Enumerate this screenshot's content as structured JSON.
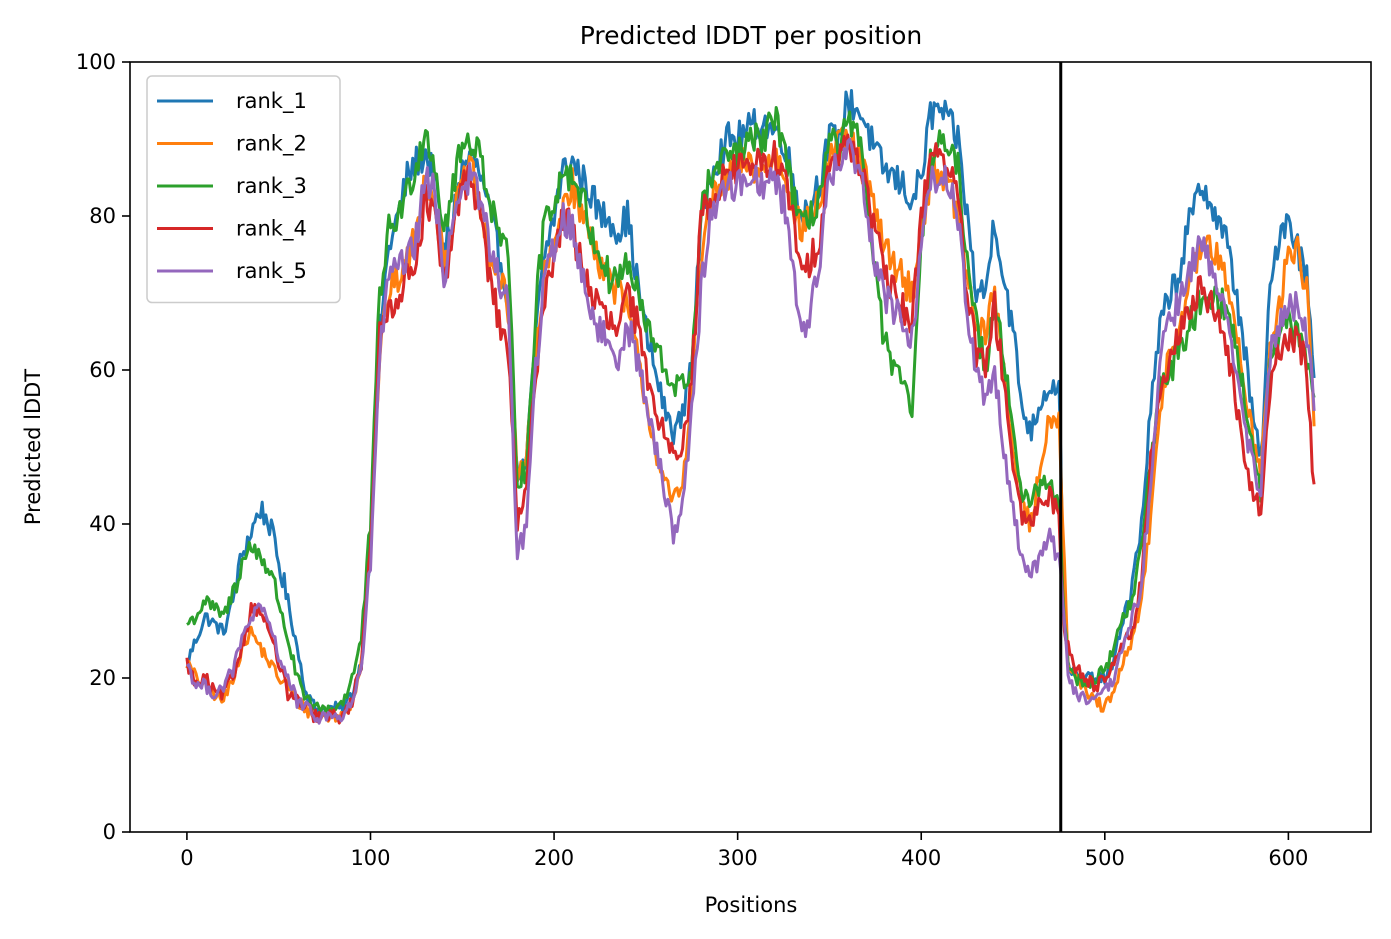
{
  "chart_data": {
    "type": "line",
    "title": "Predicted lDDT per position",
    "xlabel": "Positions",
    "ylabel": "Predicted lDDT",
    "xlim": [
      -31,
      645
    ],
    "ylim": [
      0,
      100
    ],
    "xticks": [
      0,
      100,
      200,
      300,
      400,
      500,
      600
    ],
    "yticks": [
      0,
      20,
      40,
      60,
      80,
      100
    ],
    "grid": false,
    "legend_position": "top-left",
    "vertical_line_x": 476,
    "vertical_line_color": "#000000",
    "series_keypoints_x": [
      0,
      5,
      10,
      15,
      20,
      25,
      30,
      35,
      40,
      45,
      50,
      55,
      60,
      65,
      70,
      75,
      80,
      85,
      90,
      95,
      100,
      105,
      110,
      115,
      120,
      125,
      130,
      135,
      140,
      145,
      150,
      155,
      160,
      165,
      170,
      175,
      180,
      185,
      190,
      195,
      200,
      205,
      210,
      215,
      220,
      225,
      230,
      235,
      240,
      245,
      250,
      255,
      260,
      265,
      270,
      275,
      280,
      285,
      290,
      295,
      300,
      305,
      310,
      315,
      320,
      325,
      330,
      335,
      340,
      345,
      350,
      355,
      360,
      365,
      370,
      375,
      380,
      385,
      390,
      395,
      400,
      405,
      410,
      415,
      420,
      425,
      430,
      435,
      440,
      445,
      450,
      455,
      460,
      465,
      470,
      475,
      478,
      480,
      485,
      490,
      495,
      500,
      505,
      510,
      515,
      520,
      525,
      530,
      535,
      540,
      545,
      550,
      555,
      560,
      565,
      570,
      575,
      580,
      585,
      590,
      595,
      600,
      605,
      610,
      614
    ],
    "series": [
      {
        "name": "rank_1",
        "color": "#1f77b4",
        "values": [
          22,
          25,
          28,
          27,
          26,
          30,
          36,
          39,
          42,
          40,
          35,
          30,
          24,
          18,
          16,
          16,
          16,
          16,
          18,
          22,
          38,
          65,
          76,
          80,
          85,
          87,
          88,
          85,
          75,
          80,
          86,
          88,
          85,
          80,
          75,
          70,
          46,
          48,
          65,
          75,
          80,
          86,
          87,
          85,
          83,
          80,
          80,
          78,
          80,
          72,
          65,
          60,
          55,
          52,
          54,
          62,
          78,
          86,
          88,
          90,
          90,
          91,
          92,
          92,
          91,
          90,
          85,
          80,
          82,
          85,
          90,
          90,
          95,
          94,
          92,
          88,
          86,
          85,
          84,
          82,
          85,
          93,
          94,
          92,
          90,
          80,
          70,
          70,
          80,
          72,
          65,
          55,
          52,
          56,
          58,
          58,
          28,
          22,
          20,
          20,
          20,
          20,
          22,
          28,
          32,
          40,
          55,
          65,
          70,
          72,
          78,
          82,
          84,
          80,
          78,
          72,
          65,
          55,
          48,
          70,
          78,
          80,
          76,
          72,
          60
        ]
      },
      {
        "name": "rank_2",
        "color": "#ff7f0e",
        "values": [
          22,
          20,
          19,
          18,
          17,
          20,
          24,
          26,
          24,
          22,
          20,
          19,
          17,
          16,
          15,
          15,
          15,
          15,
          17,
          22,
          38,
          62,
          70,
          72,
          74,
          78,
          85,
          82,
          74,
          80,
          84,
          86,
          80,
          75,
          72,
          68,
          47,
          49,
          62,
          72,
          76,
          82,
          84,
          80,
          78,
          74,
          72,
          70,
          68,
          62,
          56,
          50,
          45,
          43,
          45,
          58,
          74,
          82,
          83,
          85,
          86,
          87,
          86,
          86,
          88,
          86,
          82,
          78,
          80,
          82,
          88,
          89,
          90,
          88,
          85,
          80,
          76,
          74,
          72,
          70,
          78,
          85,
          86,
          84,
          80,
          72,
          65,
          65,
          70,
          60,
          50,
          42,
          40,
          48,
          54,
          54,
          35,
          22,
          20,
          18,
          17,
          16,
          18,
          22,
          25,
          30,
          40,
          55,
          62,
          65,
          70,
          74,
          77,
          75,
          72,
          68,
          60,
          52,
          47,
          62,
          68,
          75,
          76,
          70,
          53
        ]
      },
      {
        "name": "rank_3",
        "color": "#2ca02c",
        "values": [
          27,
          28,
          30,
          29,
          28,
          31,
          35,
          37,
          36,
          34,
          30,
          25,
          20,
          17,
          16,
          16,
          16,
          17,
          20,
          25,
          40,
          70,
          78,
          80,
          83,
          87,
          91,
          87,
          78,
          84,
          89,
          90,
          88,
          82,
          78,
          74,
          46,
          47,
          68,
          80,
          82,
          86,
          85,
          83,
          78,
          75,
          72,
          72,
          74,
          70,
          66,
          63,
          60,
          58,
          58,
          60,
          80,
          85,
          86,
          88,
          88,
          89,
          90,
          90,
          93,
          90,
          83,
          78,
          80,
          83,
          90,
          88,
          92,
          90,
          85,
          72,
          64,
          60,
          58,
          55,
          75,
          88,
          90,
          88,
          86,
          75,
          66,
          60,
          70,
          62,
          52,
          44,
          42,
          46,
          45,
          42,
          28,
          22,
          20,
          19,
          20,
          21,
          24,
          28,
          30,
          37,
          48,
          58,
          60,
          62,
          65,
          68,
          70,
          70,
          68,
          65,
          58,
          50,
          44,
          60,
          64,
          66,
          65,
          62,
          56
        ]
      },
      {
        "name": "rank_4",
        "color": "#d62728",
        "values": [
          22,
          19,
          20,
          18,
          18,
          20,
          24,
          29,
          29,
          26,
          22,
          18,
          17,
          16,
          15,
          15,
          15,
          15,
          17,
          22,
          38,
          64,
          68,
          70,
          72,
          75,
          82,
          80,
          70,
          78,
          84,
          85,
          80,
          72,
          66,
          63,
          40,
          44,
          60,
          70,
          75,
          80,
          78,
          74,
          70,
          68,
          66,
          65,
          70,
          66,
          60,
          55,
          52,
          50,
          50,
          58,
          80,
          82,
          84,
          86,
          86,
          87,
          87,
          86,
          88,
          85,
          80,
          72,
          74,
          78,
          88,
          87,
          90,
          88,
          84,
          78,
          72,
          70,
          68,
          66,
          80,
          88,
          89,
          86,
          82,
          70,
          62,
          60,
          68,
          58,
          48,
          40,
          40,
          43,
          44,
          41,
          26,
          24,
          21,
          20,
          19,
          20,
          22,
          25,
          26,
          32,
          48,
          57,
          60,
          64,
          68,
          70,
          70,
          68,
          65,
          58,
          50,
          44,
          42,
          58,
          62,
          64,
          64,
          60,
          44
        ]
      },
      {
        "name": "rank_5",
        "color": "#9467bd",
        "values": [
          22,
          19,
          19,
          18,
          19,
          21,
          25,
          28,
          29,
          27,
          23,
          20,
          17,
          16,
          15,
          15,
          15,
          15,
          17,
          21,
          35,
          62,
          72,
          73,
          74,
          77,
          85,
          83,
          72,
          80,
          84,
          85,
          82,
          76,
          72,
          68,
          36,
          40,
          60,
          72,
          76,
          80,
          78,
          73,
          68,
          65,
          63,
          62,
          66,
          62,
          56,
          50,
          45,
          39,
          42,
          55,
          70,
          80,
          82,
          84,
          84,
          85,
          85,
          84,
          85,
          82,
          74,
          65,
          68,
          74,
          86,
          86,
          89,
          87,
          82,
          74,
          70,
          68,
          66,
          64,
          76,
          84,
          86,
          84,
          80,
          68,
          60,
          56,
          60,
          50,
          42,
          35,
          34,
          36,
          38,
          36,
          28,
          20,
          18,
          17,
          17,
          18,
          20,
          24,
          28,
          32,
          45,
          60,
          68,
          68,
          72,
          75,
          76,
          72,
          68,
          62,
          55,
          48,
          44,
          62,
          66,
          68,
          68,
          64,
          56
        ]
      }
    ]
  }
}
